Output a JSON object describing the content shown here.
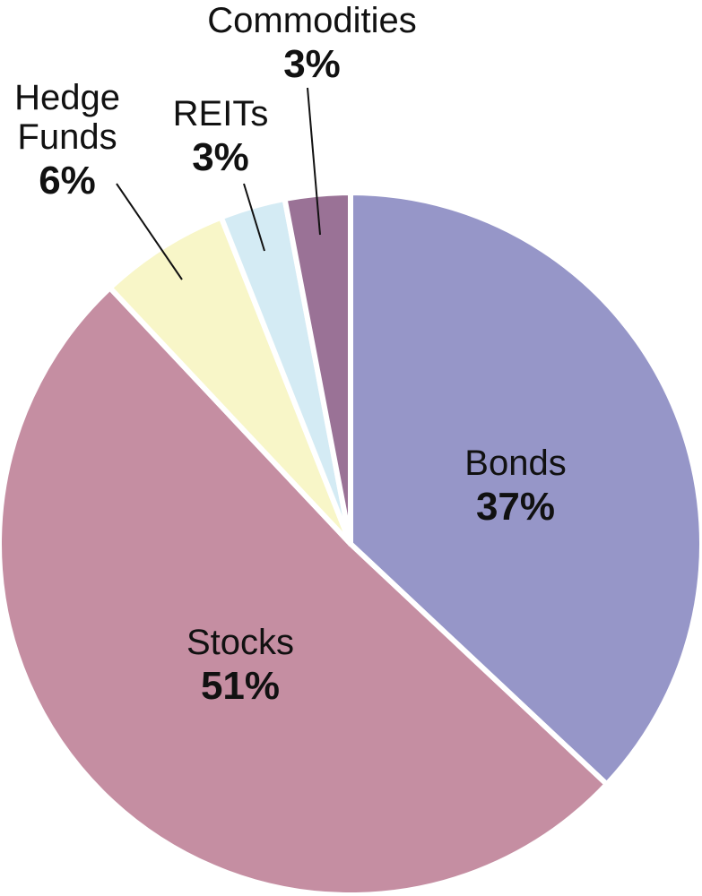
{
  "chart_data": {
    "type": "pie",
    "title": "",
    "slices": [
      {
        "label": "Bonds",
        "value": 37,
        "display": "37%",
        "color": "#9696c8"
      },
      {
        "label": "Stocks",
        "value": 51,
        "display": "51%",
        "color": "#c58ea2"
      },
      {
        "label": "Hedge Funds",
        "label_lines": [
          "Hedge",
          "Funds"
        ],
        "value": 6,
        "display": "6%",
        "color": "#f8f6c8"
      },
      {
        "label": "REITs",
        "value": 3,
        "display": "3%",
        "color": "#d4ebf4"
      },
      {
        "label": "Commodities",
        "value": 3,
        "display": "3%",
        "color": "#9a7296"
      }
    ],
    "start_angle_deg": 0,
    "direction": "clockwise",
    "legend": "none"
  }
}
